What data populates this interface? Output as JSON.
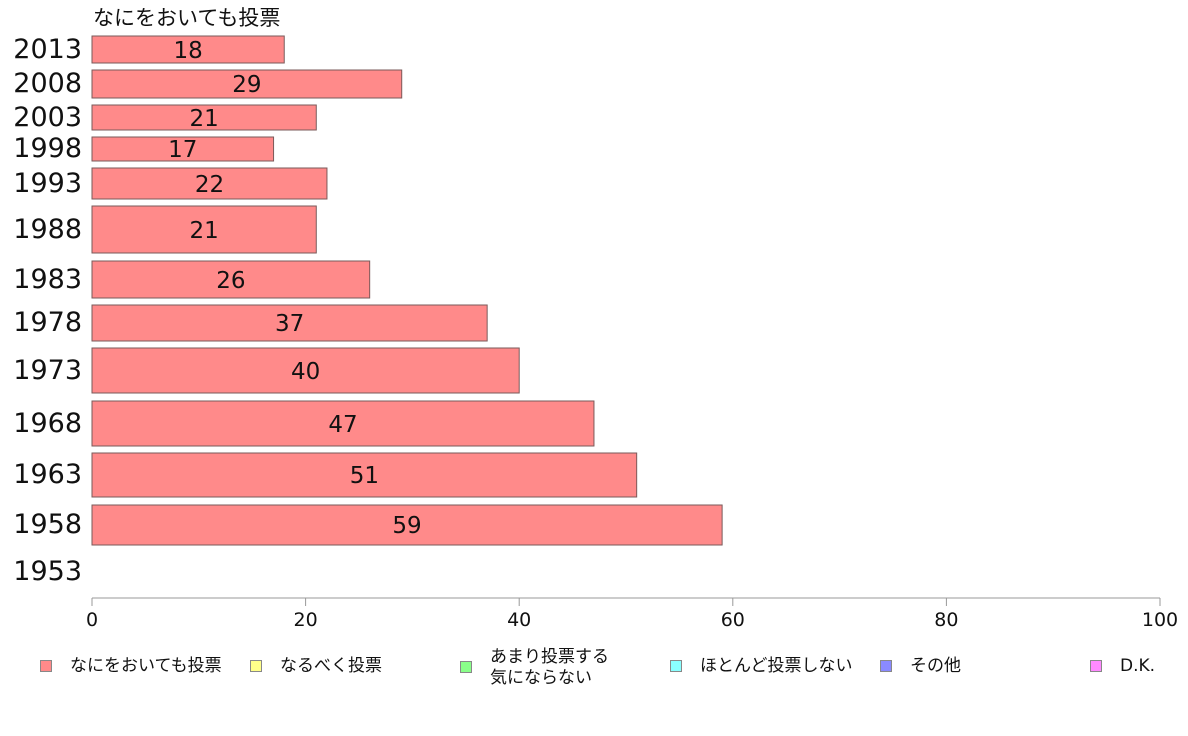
{
  "chart_data": {
    "type": "bar",
    "orientation": "horizontal",
    "title": "なにをおいても投票",
    "categories": [
      "2013",
      "2008",
      "2003",
      "1998",
      "1993",
      "1988",
      "1983",
      "1978",
      "1973",
      "1968",
      "1963",
      "1958",
      "1953"
    ],
    "series": [
      {
        "name": "なにをおいても投票",
        "color": "#ff8a8a",
        "values": [
          18,
          29,
          21,
          17,
          22,
          21,
          26,
          37,
          40,
          47,
          51,
          59,
          null
        ],
        "labels": [
          "18",
          "29",
          "21",
          "17",
          "22",
          "21",
          "26",
          "37",
          "40",
          "47",
          "51",
          "59",
          ""
        ]
      }
    ],
    "xlim": [
      0,
      100
    ],
    "xticks": [
      "0",
      "20",
      "40",
      "60",
      "80",
      "100"
    ],
    "grid": false,
    "legend_position": "bottom",
    "legend": [
      {
        "label": "なにをおいても投票",
        "color": "#ff8a8a"
      },
      {
        "label": "なるべく投票",
        "color": "#ffff8a"
      },
      {
        "label": "あまり投票する\n気にならない",
        "color": "#8aff8a"
      },
      {
        "label": "ほとんど投票しない",
        "color": "#8affff"
      },
      {
        "label": "その他",
        "color": "#8a8aff"
      },
      {
        "label": "D.K.",
        "color": "#ff8aff"
      }
    ]
  }
}
